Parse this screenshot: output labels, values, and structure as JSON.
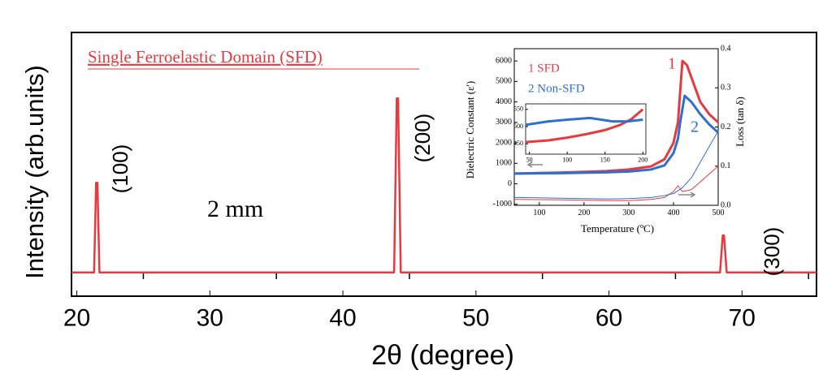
{
  "chart_data": [
    {
      "type": "line",
      "title": "Single Ferroelastic Domain (SFD)",
      "xlabel": "2θ (degree)",
      "ylabel": "Intensity (arb.units)",
      "annotations": [
        "(100)",
        "(200)",
        "(300)"
      ],
      "photo_label": "2 mm",
      "xlim": [
        19.6,
        75.6
      ],
      "ylim": [
        0,
        100
      ],
      "xticks": [
        20,
        30,
        40,
        50,
        60,
        70
      ],
      "xminorticks": [
        25,
        35,
        45,
        55,
        65,
        75
      ],
      "series": [
        {
          "color": "#e8393f",
          "x": [
            19.6,
            21.3,
            21.45,
            21.55,
            21.7,
            43.85,
            44.05,
            44.15,
            44.35,
            68.35,
            68.55,
            68.65,
            68.85,
            75.6
          ],
          "values": [
            9,
            9,
            43,
            43,
            9,
            9,
            75,
            75,
            9,
            9,
            23,
            23,
            9,
            9
          ]
        }
      ]
    },
    {
      "type": "line",
      "xlabel": "Temperature (ºC)",
      "ylabel": "Dielectric Constant (ε')",
      "y2label": "Loss (tan δ)",
      "annotations": [
        "1",
        "2"
      ],
      "xlim": [
        44,
        500
      ],
      "ylim": [
        -1050,
        6600
      ],
      "y2lim": [
        0,
        0.4
      ],
      "xticks": [
        100,
        200,
        300,
        400,
        500
      ],
      "yticks": [
        -1000,
        0,
        1000,
        2000,
        3000,
        4000,
        5000,
        6000
      ],
      "y2ticks": [
        {
          "value": 0,
          "label": "0.0"
        },
        0.1,
        0.2,
        0.3,
        0.4
      ],
      "series": [
        {
          "name": "1 SFD",
          "color": "#e8393f",
          "width": 3,
          "x": [
            44,
            150,
            250,
            300,
            350,
            380,
            400,
            410,
            415,
            420,
            430,
            440,
            460,
            480,
            500
          ],
          "values": [
            500,
            550,
            620,
            700,
            850,
            1200,
            2000,
            3000,
            4500,
            6000,
            5800,
            5200,
            4000,
            3400,
            3000
          ]
        },
        {
          "name": "2 Non-SFD",
          "color": "#2f6fd0",
          "width": 3,
          "x": [
            44,
            150,
            250,
            300,
            350,
            380,
            400,
            410,
            415,
            425,
            440,
            460,
            480,
            500
          ],
          "values": [
            500,
            520,
            560,
            600,
            700,
            900,
            1500,
            2200,
            3000,
            4300,
            4000,
            3400,
            2900,
            2500
          ]
        },
        {
          "color": "#e8393f",
          "width": 1,
          "axis": "y2",
          "x": [
            44,
            150,
            250,
            300,
            350,
            380,
            400,
            410,
            420,
            440,
            470,
            500
          ],
          "values": [
            0.015,
            0.014,
            0.012,
            0.012,
            0.015,
            0.02,
            0.035,
            0.05,
            0.035,
            0.04,
            0.07,
            0.1
          ]
        },
        {
          "color": "#2f6fd0",
          "width": 1,
          "axis": "y2",
          "x": [
            44,
            150,
            250,
            300,
            350,
            380,
            400,
            420,
            440,
            460,
            480,
            500
          ],
          "values": [
            0.02,
            0.018,
            0.016,
            0.017,
            0.02,
            0.025,
            0.03,
            0.045,
            0.07,
            0.11,
            0.15,
            0.19
          ]
        }
      ]
    },
    {
      "type": "line",
      "xlim": [
        45,
        204
      ],
      "ylim": [
        420,
        566
      ],
      "xticks": [
        50,
        100,
        150,
        200
      ],
      "yticks": [
        450,
        500,
        550
      ],
      "series": [
        {
          "color": "#e8393f",
          "width": 3,
          "x": [
            45,
            75,
            100,
            125,
            150,
            170,
            185,
            200
          ],
          "values": [
            455,
            460,
            468,
            478,
            490,
            505,
            522,
            550
          ]
        },
        {
          "color": "#2f6fd0",
          "width": 3,
          "x": [
            45,
            75,
            100,
            130,
            160,
            180,
            200
          ],
          "values": [
            505,
            515,
            520,
            525,
            515,
            515,
            520
          ]
        }
      ]
    }
  ]
}
